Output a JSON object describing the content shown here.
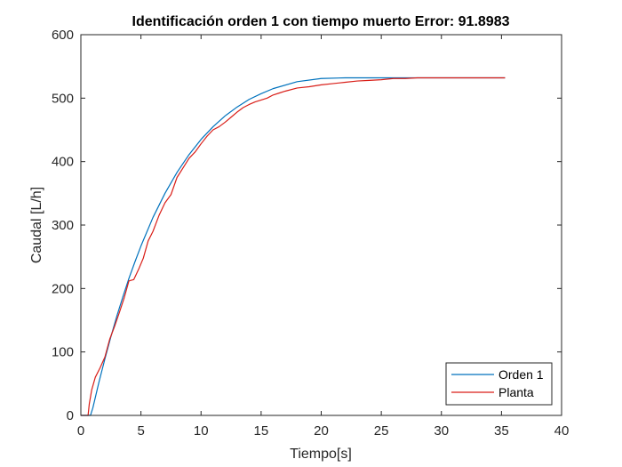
{
  "chart_data": {
    "type": "line",
    "title": "Identificación orden 1 con tiempo muerto Error: 91.8983",
    "xlabel": "Tiempo[s]",
    "ylabel": "Caudal [L/h]",
    "xlim": [
      0,
      40
    ],
    "ylim": [
      0,
      600
    ],
    "xticks": [
      0,
      5,
      10,
      15,
      20,
      25,
      30,
      35,
      40
    ],
    "yticks": [
      0,
      100,
      200,
      300,
      400,
      500,
      600
    ],
    "xtick_labels": [
      "0",
      "5",
      "10",
      "15",
      "20",
      "25",
      "30",
      "35",
      "40"
    ],
    "ytick_labels": [
      "0",
      "100",
      "200",
      "300",
      "400",
      "500",
      "600"
    ],
    "grid": false,
    "box": true,
    "legend_position": "bottom-right",
    "series": [
      {
        "name": "Orden 1",
        "color": "#0072BD",
        "x": [
          0,
          0.8,
          1.0,
          1.5,
          2,
          2.5,
          3,
          3.5,
          4,
          4.5,
          5,
          6,
          7,
          8,
          9,
          10,
          11,
          12,
          13,
          14,
          15,
          16,
          18,
          20,
          22,
          24,
          26,
          28,
          30,
          32,
          35.3
        ],
        "y": [
          0,
          0,
          12,
          52,
          89,
          124,
          157,
          187,
          216,
          242,
          267,
          312,
          350,
          383,
          411,
          435,
          455,
          472,
          486,
          498,
          507,
          515,
          526,
          531,
          532,
          532,
          532,
          532,
          532,
          532,
          532
        ]
      },
      {
        "name": "Planta",
        "color": "#D91E18",
        "x": [
          0,
          0.6,
          0.7,
          0.9,
          1.2,
          1.6,
          2.0,
          2.4,
          2.8,
          3.2,
          3.6,
          4.0,
          4.4,
          4.8,
          5.2,
          5.6,
          6.0,
          6.5,
          7.0,
          7.5,
          8.0,
          8.5,
          9.0,
          9.5,
          10.0,
          10.5,
          11.0,
          11.5,
          12.0,
          12.5,
          13.0,
          13.5,
          14.0,
          14.5,
          15.0,
          15.5,
          16.0,
          16.5,
          17.0,
          18.0,
          19.0,
          20.0,
          21.0,
          22.0,
          23.0,
          24.0,
          25.0,
          26.0,
          27.0,
          28.0,
          30.0,
          32.0,
          35.3
        ],
        "y": [
          0,
          0,
          18,
          40,
          60,
          75,
          92,
          120,
          140,
          162,
          185,
          212,
          214,
          230,
          248,
          275,
          290,
          315,
          335,
          348,
          375,
          390,
          405,
          415,
          428,
          440,
          450,
          455,
          462,
          470,
          478,
          485,
          490,
          494,
          497,
          500,
          505,
          508,
          511,
          516,
          518,
          521,
          523,
          525,
          527,
          528,
          529,
          531,
          531,
          532,
          532,
          532,
          532
        ]
      }
    ]
  }
}
